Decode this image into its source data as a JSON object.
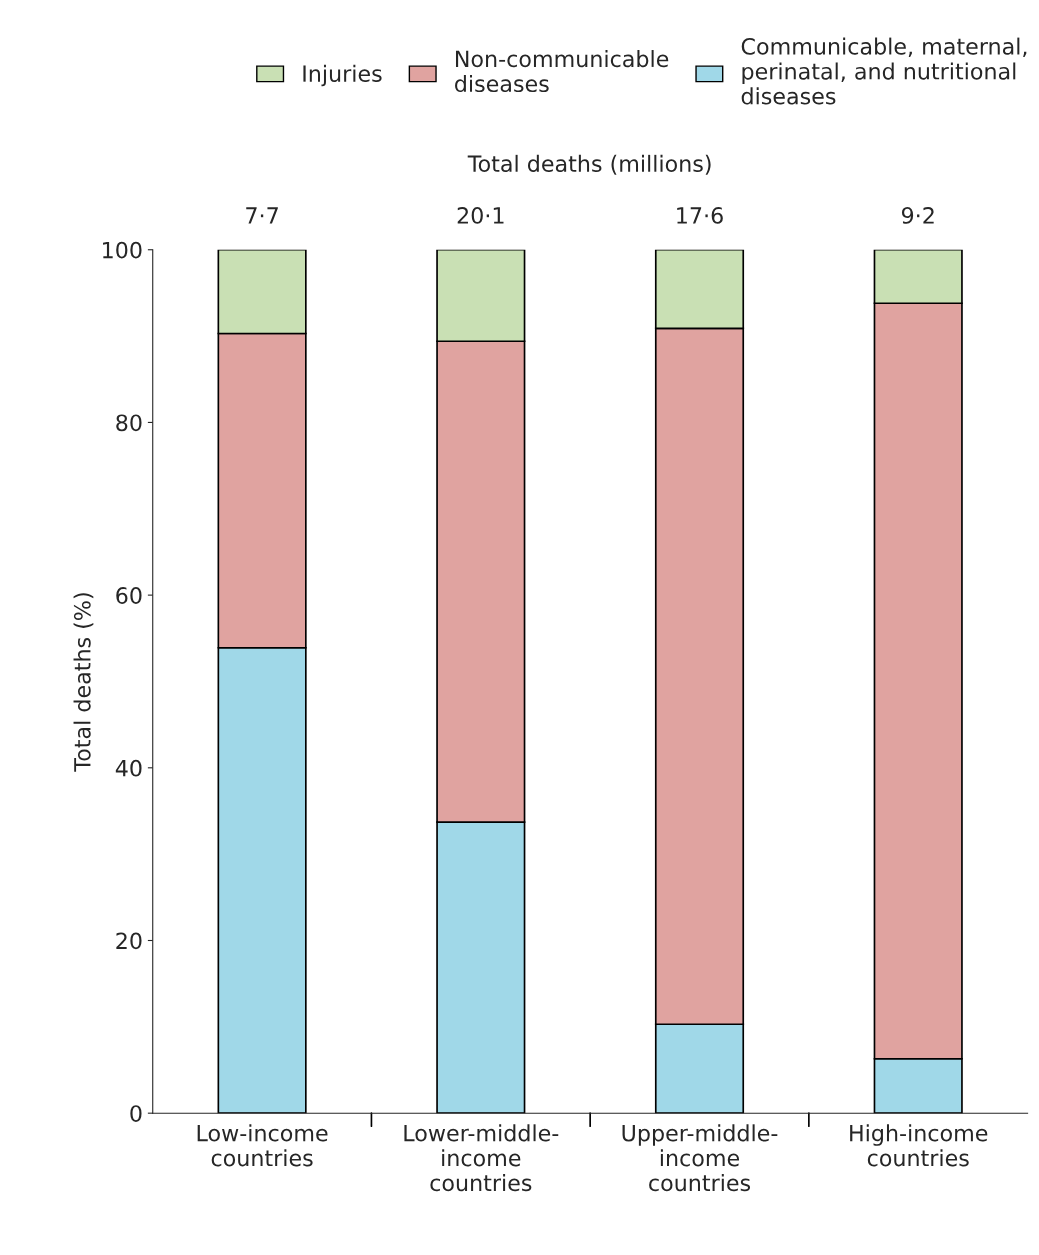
{
  "chart_data": {
    "type": "bar",
    "stacked": true,
    "ylabel": "Total deaths (%)",
    "categories": [
      "Low-income\ncountries",
      "Lower-middle-\nincome\ncountries",
      "Upper-middle-\nincome\ncountries",
      "High-income\ncountries"
    ],
    "series": [
      {
        "name": "Communicable, maternal,\nperinatal, and nutritional\ndiseases",
        "color": "#a0d8e8",
        "values": [
          53.9,
          33.7,
          10.3,
          6.3
        ]
      },
      {
        "name": "Non-communicable\ndiseases",
        "color": "#e0a3a0",
        "values": [
          36.4,
          55.7,
          80.6,
          87.5
        ]
      },
      {
        "name": "Injuries",
        "color": "#c9e0b4",
        "values": [
          9.7,
          10.6,
          9.1,
          6.2
        ]
      }
    ],
    "totals": [
      "7·7",
      "20·1",
      "17·6",
      "9·2"
    ],
    "annotations": [
      "Total deaths (millions)"
    ],
    "ylim": [
      0,
      100
    ],
    "yticks": [
      0,
      20,
      40,
      60,
      80,
      100
    ],
    "grid": false,
    "legend": "top"
  }
}
